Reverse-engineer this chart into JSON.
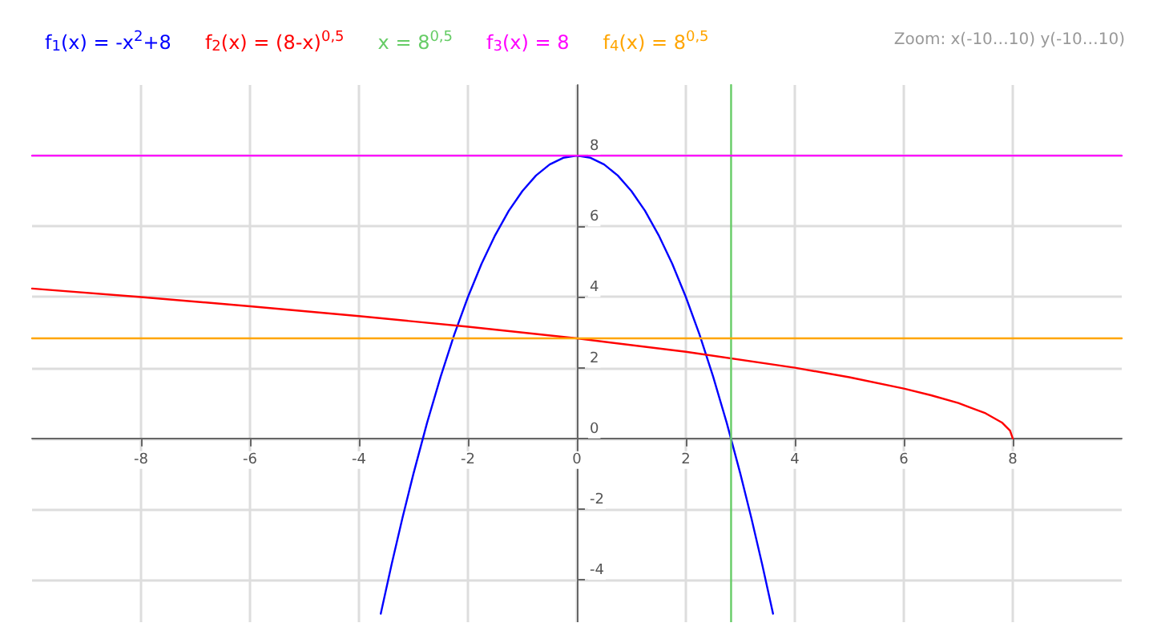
{
  "chart_data": {
    "type": "line",
    "legend": "top left",
    "grid": true,
    "marker": "none",
    "line_style": "solid",
    "xlim": [
      -10,
      10
    ],
    "ylim": [
      -5.2,
      10
    ],
    "xticks": [
      -8,
      -6,
      -4,
      -2,
      0,
      2,
      4,
      6,
      8
    ],
    "yticks": [
      -4,
      -2,
      0,
      2,
      4,
      6,
      8
    ],
    "annotations": [
      "Zoom: x(-10…10) y(-10…10)"
    ],
    "series": [
      {
        "name": "f$_{1}$(x) = -x$^{2}$+8",
        "color": "#0000ff",
        "x": [
          -3.6,
          -3.4,
          -3.2,
          -3,
          -2.75,
          -2.5,
          -2.25,
          -2,
          -1.75,
          -1.5,
          -1.25,
          -1,
          -0.75,
          -0.5,
          -0.25,
          0,
          0.25,
          0.5,
          0.75,
          1,
          1.25,
          1.5,
          1.75,
          2,
          2.25,
          2.5,
          2.75,
          3,
          3.2,
          3.4,
          3.6
        ],
        "values": [
          -4.96,
          -3.56,
          -2.24,
          -1,
          0.44,
          1.75,
          2.94,
          4,
          4.94,
          5.75,
          6.44,
          7,
          7.44,
          7.75,
          7.94,
          8,
          7.94,
          7.75,
          7.44,
          7,
          6.44,
          5.75,
          4.94,
          4,
          2.94,
          1.75,
          0.44,
          -1,
          -2.24,
          -3.56,
          -4.96
        ]
      },
      {
        "name": "f$_{2}$(x) = (8-x)$^{0,5}$",
        "color": "#ff0000",
        "x": [
          -10,
          -8,
          -6,
          -4,
          -2,
          0,
          2,
          4,
          5,
          6,
          6.5,
          7,
          7.5,
          7.8,
          7.95,
          8
        ],
        "values": [
          4.24,
          4,
          3.74,
          3.46,
          3.16,
          2.83,
          2.45,
          2,
          1.73,
          1.41,
          1.22,
          1,
          0.71,
          0.45,
          0.22,
          0
        ]
      },
      {
        "name": "x = 8$^{0,5}$",
        "color": "#66cc66",
        "x": [
          2.83,
          2.83
        ],
        "values": [
          -5.2,
          10
        ]
      },
      {
        "name": "f$_{3}$(x) = 8",
        "color": "#ff00ff",
        "x": [
          -10,
          10
        ],
        "values": [
          8,
          8
        ]
      },
      {
        "name": "f$_{4}$(x) = 8$^{0,5}$",
        "color": "#ffa500",
        "x": [
          -10,
          10
        ],
        "values": [
          2.83,
          2.83
        ]
      }
    ]
  }
}
